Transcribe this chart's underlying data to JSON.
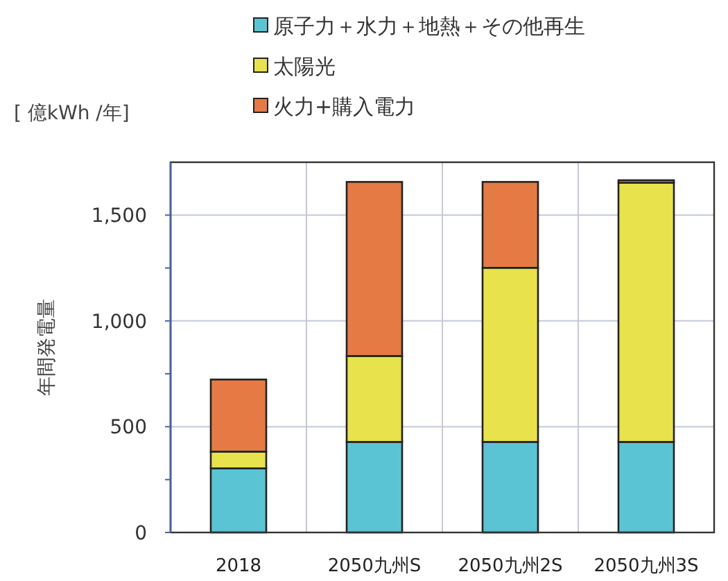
{
  "chart_data": {
    "type": "bar",
    "stacked": true,
    "categories": [
      "2018",
      "2050九州S",
      "2050九州2S",
      "2050九州3S"
    ],
    "series": [
      {
        "name": "原子力＋水力＋地熱＋その他再生",
        "color": "#5bc4d4",
        "values": [
          303,
          428,
          428,
          428
        ]
      },
      {
        "name": "太陽光",
        "color": "#e8e24c",
        "values": [
          79,
          406,
          823,
          1225
        ]
      },
      {
        "name": "火力+購入電力",
        "color": "#e67a45",
        "values": [
          341,
          823,
          406,
          12
        ]
      }
    ],
    "ylabel": "年間発電量",
    "annotations": [
      "[ 億kWh /年]"
    ],
    "ylim": [
      0,
      1750
    ],
    "yticks": [
      0,
      {
        "value": 250,
        "label": null
      },
      {
        "value": 500,
        "label": "500"
      },
      {
        "value": 750,
        "label": null
      },
      {
        "value": 1000,
        "label": "1,000"
      },
      {
        "value": 1250,
        "label": null
      },
      {
        "value": 1500,
        "label": "1,500"
      }
    ],
    "grid": true,
    "legend": "top"
  }
}
